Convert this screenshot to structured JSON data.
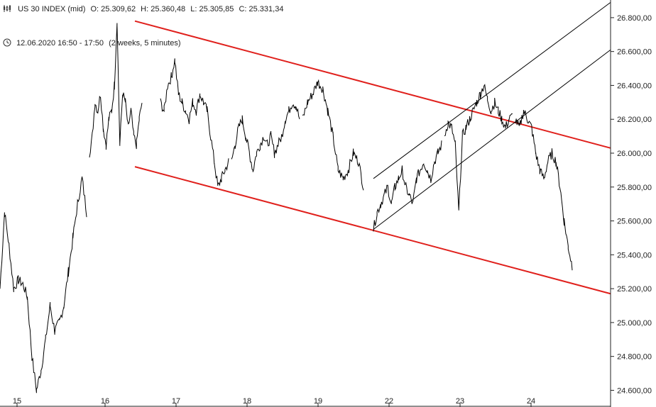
{
  "header": {
    "instrument": "US 30 INDEX (mid)",
    "open": "O: 25.309,62",
    "high": "H: 25.360,48",
    "low": "L: 25.305,85",
    "close": "C: 25.331,34",
    "period": "12.06.2020 16:50 - 17:50",
    "interval": "(2 weeks, 5 minutes)",
    "bars_icon": "candlestick-icon",
    "clock_icon": "clock-icon"
  },
  "chart_data": {
    "type": "line",
    "title": "",
    "xlabel": "",
    "ylabel": "",
    "x_ticks": [
      "15",
      "16",
      "17",
      "18",
      "19",
      "22",
      "23",
      "24"
    ],
    "y_ticks": [
      "24.600,00",
      "24.800,00",
      "25.000,00",
      "25.200,00",
      "25.400,00",
      "25.600,00",
      "25.800,00",
      "26.000,00",
      "26.200,00",
      "26.400,00",
      "26.600,00",
      "26.800,00"
    ],
    "ylim": [
      24560,
      26900
    ],
    "grid": false,
    "series": [
      {
        "values_by_session": [
          {
            "session": "15",
            "points": [
              25200,
              25650,
              25450,
              25200,
              25250,
              25230,
              25150,
              24800,
              24600,
              24720,
              24900,
              25100,
              24950,
              25000,
              25100,
              25300,
              25500,
              25700,
              25850,
              25650
            ]
          },
          {
            "session": "16",
            "points": [
              26000,
              26100,
              26300,
              26250,
              26350,
              26150,
              26050,
              26200,
              26250,
              26400,
              26780,
              26050,
              26350,
              26300,
              26150,
              26250,
              26100,
              26050,
              26200,
              26300
            ]
          },
          {
            "session": "17",
            "points": [
              26300,
              26250,
              26400,
              26450,
              26550,
              26350,
              26300,
              26250,
              26200,
              26300,
              26250,
              26350,
              26300,
              26250,
              26100,
              25950,
              25800,
              25850,
              25900,
              25950
            ]
          },
          {
            "session": "18",
            "points": [
              25950,
              26050,
              26150,
              26200,
              26100,
              26000,
              25900,
              26000,
              26050,
              26100,
              26050,
              26100,
              26000,
              26050,
              26100,
              26200,
              26250,
              26300,
              26280,
              26200
            ]
          },
          {
            "session": "19",
            "points": [
              26200,
              26300,
              26350,
              26420,
              26380,
              26250,
              26100,
              25900,
              25850,
              25900,
              26000,
              25950,
              25800
            ]
          },
          {
            "session": "22",
            "points": [
              25550,
              25650,
              25700,
              25750,
              25800,
              25700,
              25800,
              25850,
              25900,
              25800,
              25750,
              25700,
              25850,
              25900,
              25950,
              25900,
              25850,
              25950,
              26000,
              26050
            ]
          },
          {
            "session": "23",
            "points": [
              26100,
              26180,
              26150,
              26050,
              25650,
              26100,
              26150,
              26200,
              26250,
              26300,
              26350,
              26400,
              26320,
              26250,
              26300,
              26250,
              26200,
              26150,
              26200,
              26220
            ]
          },
          {
            "session": "24",
            "points": [
              26200,
              26150,
              26250,
              26200,
              26150,
              26000,
              25900,
              25850,
              25950,
              26000,
              25950,
              25800,
              25600,
              25450,
              25330
            ]
          }
        ]
      }
    ],
    "annotations": {
      "red_channel_upper": {
        "from": [
          "16 late",
          26780
        ],
        "to": [
          "24 end",
          26030
        ]
      },
      "red_channel_lower": {
        "from": [
          "16 late",
          25920
        ],
        "to": [
          "24 end",
          25170
        ]
      },
      "black_channel_upper": {
        "from": [
          "22 open",
          25850
        ],
        "to": [
          "24 end",
          26890
        ]
      },
      "black_channel_lower": {
        "from": [
          "22 open",
          25550
        ],
        "to": [
          "24 end",
          26610
        ]
      }
    },
    "colors": {
      "price": "#000000",
      "red_channel": "#e0201c",
      "black_channel": "#000000",
      "axis": "#222222"
    }
  }
}
